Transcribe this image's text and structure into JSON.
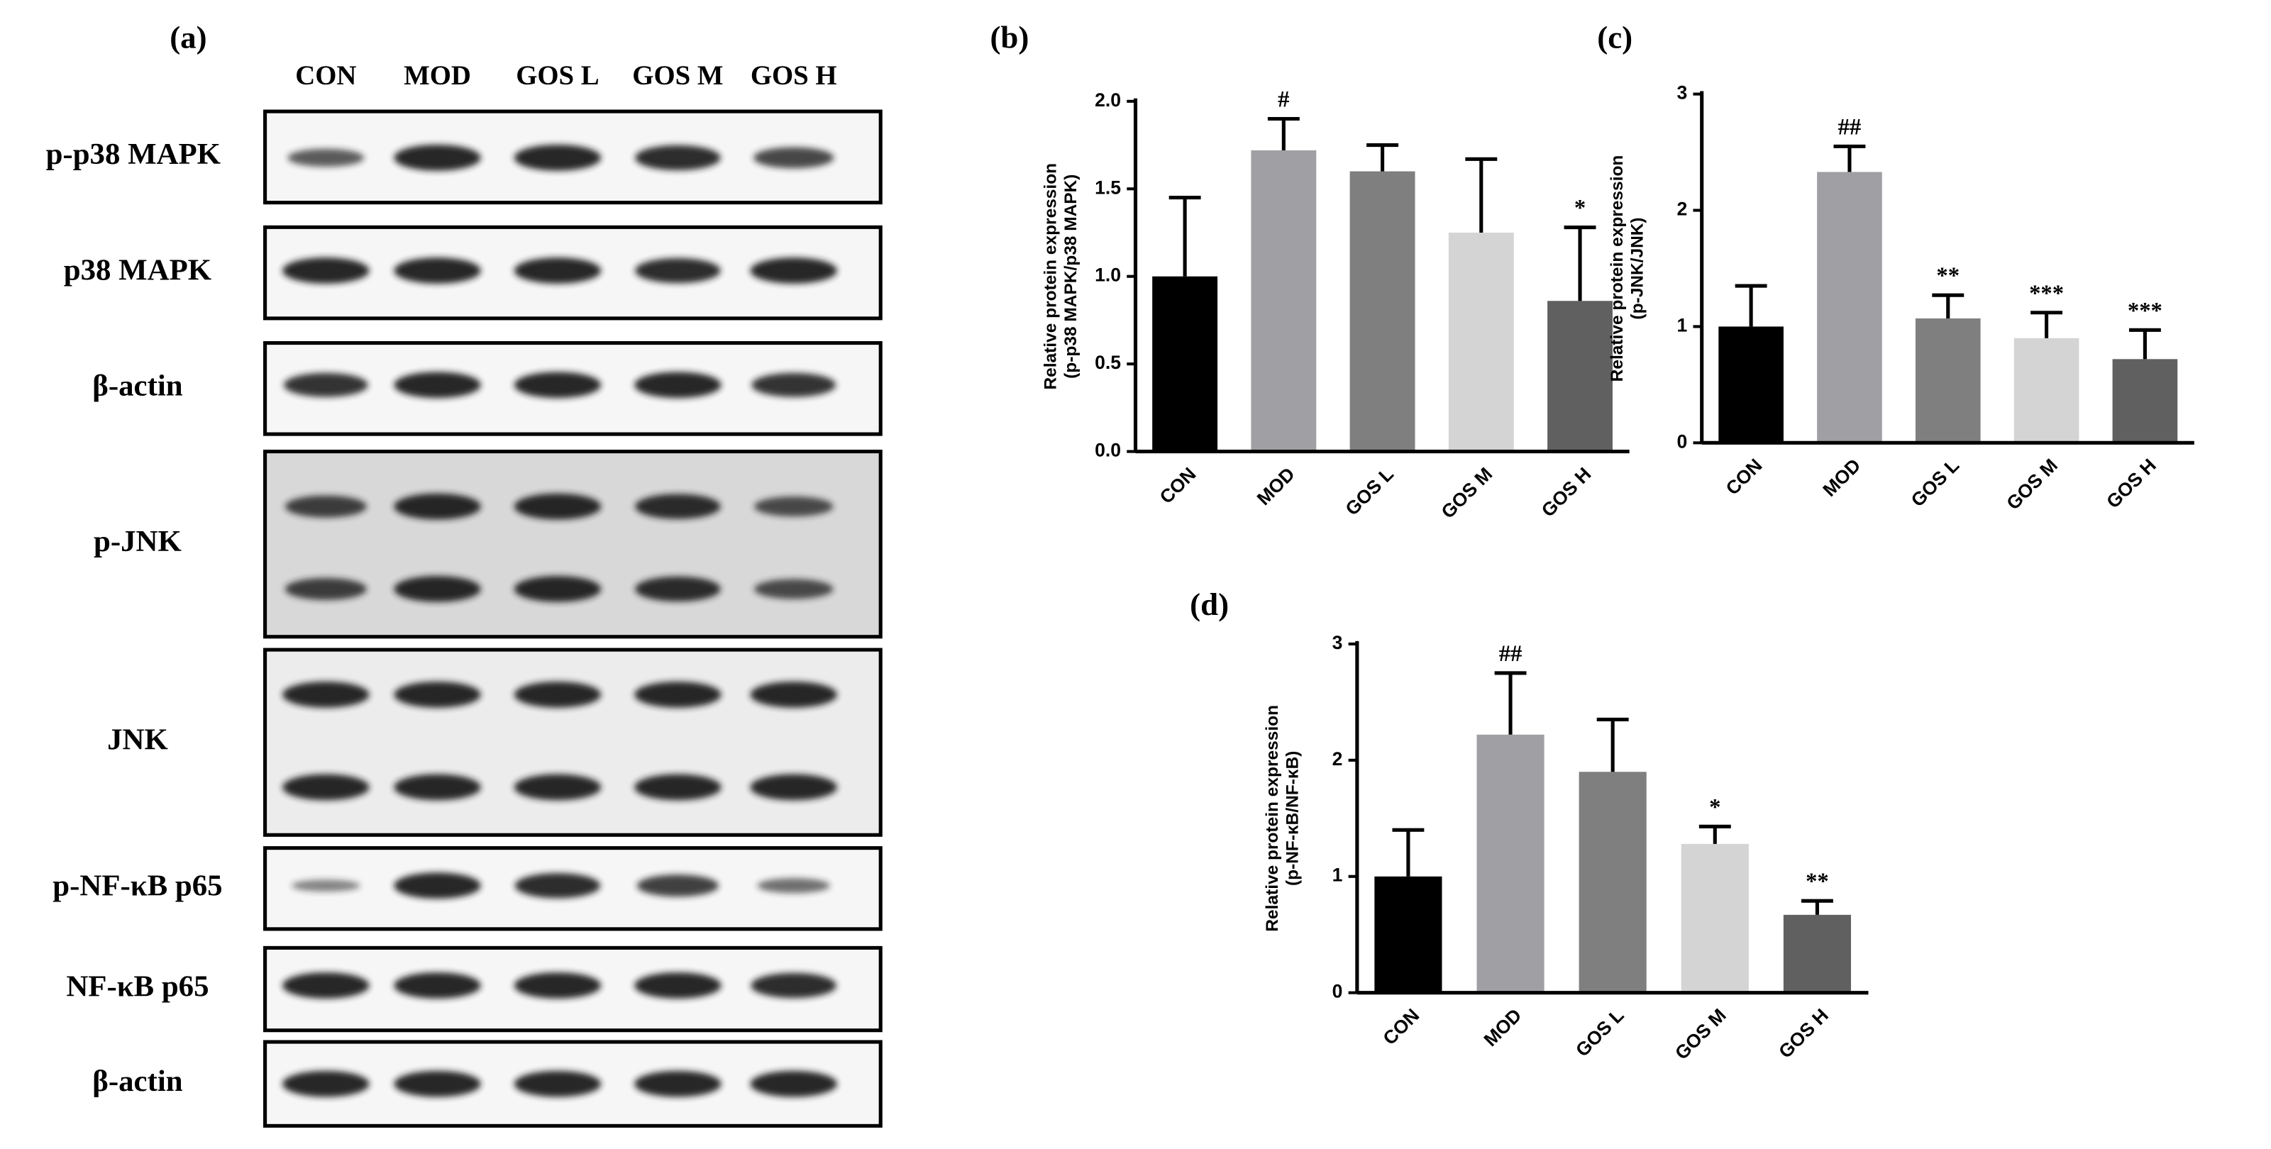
{
  "blot": {
    "label": "(a)",
    "lanes": [
      "CON",
      "MOD",
      "GOS L",
      "GOS M",
      "GOS H"
    ],
    "rows": [
      "p-p38 MAPK",
      "p38 MAPK",
      "β-actin",
      "p-JNK",
      "JNK",
      "p-NF-κB p65",
      "NF-κB p65",
      "β-actin"
    ]
  },
  "chart_data": [
    {
      "type": "bar",
      "title": "(b)",
      "ylabel": [
        "Relative protein expression",
        "(p-p38 MAPK/p38 MAPK)"
      ],
      "categories": [
        "CON",
        "MOD",
        "GOS L",
        "GOS M",
        "GOS H"
      ],
      "values": [
        1.0,
        1.72,
        1.6,
        1.25,
        0.86
      ],
      "errors": [
        0.45,
        0.18,
        0.15,
        0.42,
        0.42
      ],
      "annotations": [
        null,
        "#",
        null,
        null,
        "*"
      ],
      "colors": [
        "#000000",
        "#a0a0a4",
        "#7f7f7f",
        "#d4d4d4",
        "#606060"
      ],
      "ylim": [
        0,
        2
      ],
      "yticks": [
        {
          "value": 0,
          "label": "0.0"
        },
        {
          "value": 0.5,
          "label": "0.5"
        },
        {
          "value": 1,
          "label": "1.0"
        },
        1.5,
        {
          "value": 2,
          "label": "2.0"
        }
      ]
    },
    {
      "type": "bar",
      "title": "(c)",
      "ylabel": [
        "Relative protein expression",
        "(p-JNK/JNK)"
      ],
      "categories": [
        "CON",
        "MOD",
        "GOS L",
        "GOS M",
        "GOS H"
      ],
      "values": [
        1.0,
        2.33,
        1.07,
        0.9,
        0.72
      ],
      "errors": [
        0.35,
        0.22,
        0.2,
        0.22,
        0.25
      ],
      "annotations": [
        null,
        "##",
        "**",
        "***",
        "***"
      ],
      "colors": [
        "#000000",
        "#a0a0a4",
        "#7f7f7f",
        "#d4d4d4",
        "#606060"
      ],
      "ylim": [
        0,
        3
      ],
      "yticks": [
        0,
        1,
        2,
        3
      ]
    },
    {
      "type": "bar",
      "title": "(d)",
      "ylabel": [
        "Relative protein expression",
        "(p-NF-κB/NF-κB)"
      ],
      "categories": [
        "CON",
        "MOD",
        "GOS L",
        "GOS M",
        "GOS H"
      ],
      "values": [
        1.0,
        2.22,
        1.9,
        1.28,
        0.67
      ],
      "errors": [
        0.4,
        0.53,
        0.45,
        0.15,
        0.12
      ],
      "annotations": [
        null,
        "##",
        null,
        "*",
        "**"
      ],
      "colors": [
        "#000000",
        "#a0a0a4",
        "#7f7f7f",
        "#d4d4d4",
        "#606060"
      ],
      "ylim": [
        0,
        3
      ],
      "yticks": [
        0,
        1,
        2,
        3
      ]
    }
  ]
}
